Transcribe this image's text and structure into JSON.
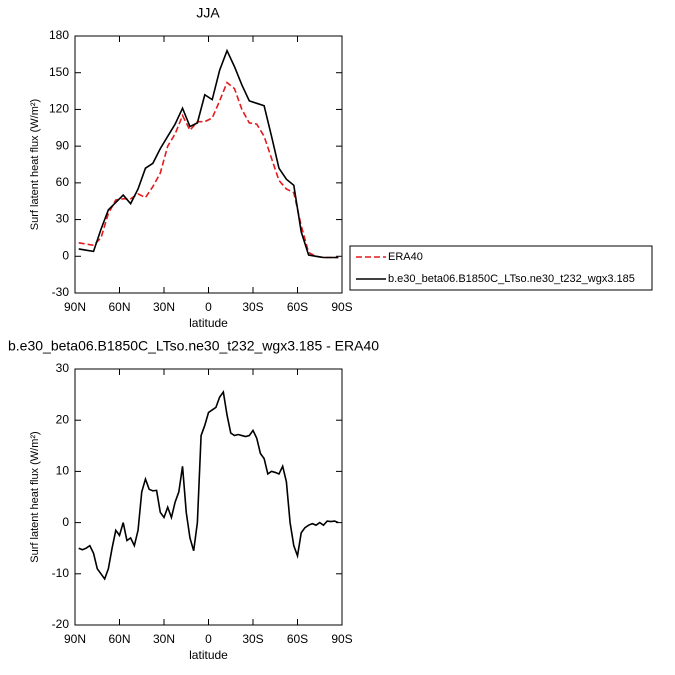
{
  "chart_data": [
    {
      "type": "line",
      "title": "JJA",
      "xlabel": "latitude",
      "ylabel": "Surf latent heat flux (W/m²)",
      "x": [
        87.5,
        82.5,
        77.5,
        72.5,
        67.5,
        62.5,
        57.5,
        52.5,
        47.5,
        42.5,
        37.5,
        32.5,
        27.5,
        22.5,
        17.5,
        12.5,
        7.5,
        2.5,
        -2.5,
        -7.5,
        -12.5,
        -17.5,
        -22.5,
        -27.5,
        -32.5,
        -37.5,
        -42.5,
        -47.5,
        -52.5,
        -57.5,
        -62.5,
        -67.5,
        -72.5,
        -77.5,
        -82.5,
        -87.5
      ],
      "series": [
        {
          "name": "ERA40",
          "color": "#e41a1c",
          "linestyle": "dashed",
          "values": [
            11,
            10,
            9,
            15,
            35,
            46,
            47,
            47,
            51,
            48,
            57,
            68,
            90,
            100,
            115,
            103,
            110,
            110,
            113,
            127,
            142,
            137,
            120,
            109,
            108,
            98,
            80,
            62,
            55,
            52,
            25,
            3,
            0,
            -1,
            -1,
            -1
          ]
        },
        {
          "name": "b.e30_beta06.B1850C_LTso.ne30_t232_wgx3.185",
          "color": "#000000",
          "linestyle": "solid",
          "values": [
            6,
            5,
            4,
            22,
            38,
            44,
            50,
            43,
            55,
            72,
            76,
            88,
            98,
            108,
            121,
            106,
            109,
            132,
            128,
            152,
            168,
            155,
            140,
            127,
            125,
            123,
            98,
            72,
            63,
            58,
            20,
            1,
            0,
            -1,
            -1,
            -1
          ]
        }
      ],
      "xlim": [
        90,
        -90
      ],
      "xticks": [
        {
          "value": 90,
          "label": "90N"
        },
        {
          "value": 60,
          "label": "60N"
        },
        {
          "value": 30,
          "label": "30N"
        },
        0,
        {
          "value": -30,
          "label": "30S"
        },
        {
          "value": -60,
          "label": "60S"
        },
        {
          "value": -90,
          "label": "90S"
        }
      ],
      "ylim": [
        -30,
        180
      ],
      "yticks": [
        180,
        150,
        120,
        90,
        60,
        30,
        0,
        -30
      ],
      "legend": "right"
    },
    {
      "type": "line",
      "title": "b.e30_beta06.B1850C_LTso.ne30_t232_wgx3.185 - ERA40",
      "xlabel": "latitude",
      "ylabel": "Surf latent heat flux (W/m²)",
      "x": [
        87.5,
        85,
        82.5,
        80,
        77.5,
        75,
        72.5,
        70,
        67.5,
        65,
        62.5,
        60,
        57.5,
        55,
        52.5,
        50,
        47.5,
        45,
        42.5,
        40,
        37.5,
        35,
        32.5,
        30,
        27.5,
        25,
        22.5,
        20,
        17.5,
        15,
        12.5,
        10,
        7.5,
        5,
        2.5,
        0,
        -2.5,
        -5,
        -7.5,
        -10,
        -12.5,
        -15,
        -17.5,
        -20,
        -22.5,
        -25,
        -27.5,
        -30,
        -32.5,
        -35,
        -37.5,
        -40,
        -42.5,
        -45,
        -47.5,
        -50,
        -52.5,
        -55,
        -57.5,
        -60,
        -62.5,
        -65,
        -67.5,
        -70,
        -72.5,
        -75,
        -77.5,
        -80,
        -82.5,
        -85,
        -87.5
      ],
      "series": [
        {
          "color": "#000000",
          "linestyle": "solid",
          "values": [
            -5,
            -5.3,
            -5,
            -4.5,
            -6,
            -9,
            -10,
            -11,
            -9,
            -5,
            -1.5,
            -2.5,
            0,
            -3.5,
            -3,
            -4.5,
            -1.5,
            6,
            8.5,
            6.5,
            6.2,
            6.3,
            2,
            1,
            3,
            1,
            4,
            6,
            11,
            2,
            -3,
            -5.5,
            0,
            17,
            19,
            21.5,
            22,
            22.5,
            24.5,
            25.5,
            21,
            17.5,
            17,
            17.2,
            17,
            16.8,
            17,
            18,
            16.5,
            13.5,
            12.5,
            9.5,
            10,
            9.8,
            9.5,
            11,
            8,
            0,
            -4.5,
            -6.5,
            -2,
            -1,
            -0.5,
            -0.2,
            -0.5,
            0,
            -0.5,
            0.3,
            0.2,
            0.3,
            0
          ]
        }
      ],
      "xlim": [
        90,
        -90
      ],
      "xticks": [
        {
          "value": 90,
          "label": "90N"
        },
        {
          "value": 60,
          "label": "60N"
        },
        {
          "value": 30,
          "label": "30N"
        },
        0,
        {
          "value": -30,
          "label": "30S"
        },
        {
          "value": -60,
          "label": "60S"
        },
        {
          "value": -90,
          "label": "90S"
        }
      ],
      "ylim": [
        -20,
        30
      ],
      "yticks": [
        30,
        20,
        10,
        0,
        -10,
        -20
      ]
    }
  ]
}
